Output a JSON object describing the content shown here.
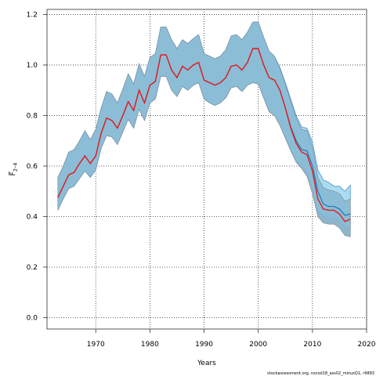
{
  "chart_data": {
    "type": "line",
    "xlabel": "Years",
    "ylabel": "F̅",
    "ylabel_sub": "2–4",
    "xlim": [
      1961,
      2020
    ],
    "ylim": [
      -0.045,
      1.22
    ],
    "xticks": [
      1970,
      1980,
      1990,
      2000,
      2010,
      2020
    ],
    "yticks": [
      0.0,
      0.2,
      0.4,
      0.6,
      0.8,
      1.0,
      1.2
    ],
    "xtick_labels": [
      "1970",
      "1980",
      "1990",
      "2000",
      "2010",
      "2020"
    ],
    "ytick_labels": [
      "0.0",
      "0.2",
      "0.4",
      "0.6",
      "0.8",
      "1.0",
      "1.2"
    ],
    "grid": true,
    "footnote": "stockassessment.org, nscod18_ass02_minusQ1, r9893",
    "colors": {
      "estimate_line": "#e41a1c",
      "ci_base_fill": "#87b7d2",
      "ci_base_stroke": "#7d8f9c",
      "ci_alt_fill": "#a9dcf1",
      "ci_alt_line": "#1f78b4",
      "ci_alt_lower_shade": "#9e9e9e"
    },
    "years": [
      1963,
      1964,
      1965,
      1966,
      1967,
      1968,
      1969,
      1970,
      1971,
      1972,
      1973,
      1974,
      1975,
      1976,
      1977,
      1978,
      1979,
      1980,
      1981,
      1982,
      1983,
      1984,
      1985,
      1986,
      1987,
      1988,
      1989,
      1990,
      1991,
      1992,
      1993,
      1994,
      1995,
      1996,
      1997,
      1998,
      1999,
      2000,
      2001,
      2002,
      2003,
      2004,
      2005,
      2006,
      2007,
      2008,
      2009,
      2010,
      2011,
      2012,
      2013,
      2014,
      2015,
      2016,
      2017
    ],
    "series": [
      {
        "name": "",
        "role": "estimate",
        "values": [
          0.475,
          0.52,
          0.565,
          0.575,
          0.61,
          0.64,
          0.61,
          0.64,
          0.73,
          0.79,
          0.78,
          0.75,
          0.8,
          0.855,
          0.82,
          0.9,
          0.85,
          0.92,
          0.935,
          1.04,
          1.04,
          0.98,
          0.95,
          0.995,
          0.98,
          1.0,
          1.01,
          0.94,
          0.93,
          0.92,
          0.93,
          0.95,
          0.995,
          1.0,
          0.98,
          1.01,
          1.065,
          1.065,
          1.0,
          0.95,
          0.94,
          0.9,
          0.83,
          0.75,
          0.69,
          0.655,
          0.645,
          0.58,
          0.47,
          0.43,
          0.425,
          0.425,
          0.41,
          0.38,
          0.39
        ]
      },
      {
        "name": "",
        "role": "ci_lower",
        "values": [
          0.425,
          0.47,
          0.51,
          0.52,
          0.55,
          0.58,
          0.555,
          0.585,
          0.67,
          0.72,
          0.715,
          0.685,
          0.735,
          0.785,
          0.75,
          0.825,
          0.78,
          0.85,
          0.865,
          0.955,
          0.955,
          0.9,
          0.875,
          0.915,
          0.9,
          0.92,
          0.93,
          0.865,
          0.85,
          0.84,
          0.85,
          0.87,
          0.91,
          0.915,
          0.895,
          0.92,
          0.93,
          0.925,
          0.87,
          0.815,
          0.8,
          0.76,
          0.71,
          0.66,
          0.615,
          0.59,
          0.56,
          0.49,
          0.4,
          0.375,
          0.37,
          0.37,
          0.355,
          0.325,
          0.32
        ]
      },
      {
        "name": "",
        "role": "ci_upper",
        "values": [
          0.555,
          0.6,
          0.655,
          0.665,
          0.7,
          0.74,
          0.705,
          0.745,
          0.83,
          0.895,
          0.885,
          0.85,
          0.905,
          0.965,
          0.925,
          1.005,
          0.955,
          1.03,
          1.045,
          1.15,
          1.15,
          1.1,
          1.065,
          1.1,
          1.085,
          1.105,
          1.12,
          1.045,
          1.035,
          1.025,
          1.035,
          1.06,
          1.115,
          1.12,
          1.1,
          1.13,
          1.17,
          1.17,
          1.11,
          1.055,
          1.035,
          0.985,
          0.925,
          0.855,
          0.79,
          0.745,
          0.74,
          0.675,
          0.555,
          0.515,
          0.505,
          0.5,
          0.49,
          0.46,
          0.47
        ]
      },
      {
        "name": "",
        "role": "alt_estimate",
        "values": [
          0.475,
          0.52,
          0.565,
          0.575,
          0.61,
          0.64,
          0.61,
          0.64,
          0.73,
          0.79,
          0.78,
          0.75,
          0.8,
          0.855,
          0.82,
          0.9,
          0.85,
          0.92,
          0.935,
          1.04,
          1.04,
          0.98,
          0.95,
          0.995,
          0.98,
          1.0,
          1.01,
          0.94,
          0.93,
          0.92,
          0.93,
          0.95,
          0.995,
          1.0,
          0.98,
          1.01,
          1.065,
          1.065,
          1.0,
          0.95,
          0.94,
          0.9,
          0.83,
          0.755,
          0.7,
          0.665,
          0.66,
          0.6,
          0.5,
          0.45,
          0.44,
          0.44,
          0.43,
          0.405,
          0.41
        ]
      },
      {
        "name": "",
        "role": "alt_ci_lower",
        "values": [
          0.425,
          0.47,
          0.51,
          0.52,
          0.55,
          0.58,
          0.555,
          0.585,
          0.67,
          0.72,
          0.715,
          0.685,
          0.735,
          0.785,
          0.75,
          0.825,
          0.78,
          0.85,
          0.865,
          0.955,
          0.955,
          0.9,
          0.875,
          0.915,
          0.9,
          0.92,
          0.93,
          0.865,
          0.85,
          0.84,
          0.85,
          0.87,
          0.91,
          0.915,
          0.895,
          0.92,
          0.93,
          0.925,
          0.87,
          0.815,
          0.8,
          0.765,
          0.715,
          0.665,
          0.62,
          0.6,
          0.575,
          0.51,
          0.425,
          0.4,
          0.395,
          0.395,
          0.385,
          0.36,
          0.36
        ]
      },
      {
        "name": "",
        "role": "alt_ci_upper",
        "values": [
          0.555,
          0.6,
          0.655,
          0.665,
          0.7,
          0.74,
          0.705,
          0.745,
          0.83,
          0.895,
          0.885,
          0.85,
          0.905,
          0.965,
          0.925,
          1.005,
          0.955,
          1.03,
          1.045,
          1.15,
          1.15,
          1.1,
          1.065,
          1.1,
          1.085,
          1.105,
          1.12,
          1.045,
          1.035,
          1.025,
          1.035,
          1.06,
          1.115,
          1.12,
          1.1,
          1.13,
          1.17,
          1.17,
          1.11,
          1.055,
          1.035,
          0.99,
          0.93,
          0.865,
          0.8,
          0.755,
          0.75,
          0.695,
          0.585,
          0.545,
          0.535,
          0.52,
          0.52,
          0.5,
          0.525
        ]
      }
    ]
  }
}
